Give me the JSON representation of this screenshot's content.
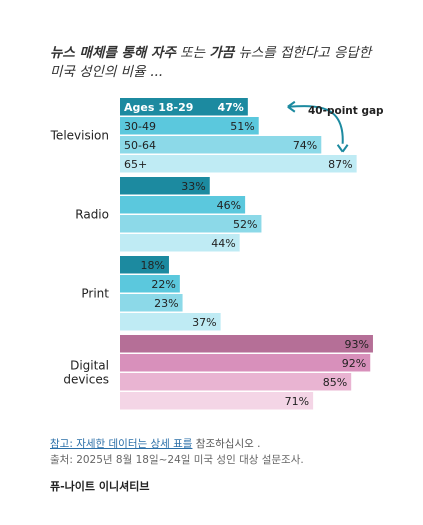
{
  "title": {
    "part1": "뉴스 매체를 통해 자주",
    "part2": " 또는 ",
    "part3": "가끔",
    "part4": " 뉴스를 접한다고 응답한",
    "line2": "미국 성인의 비율 ..."
  },
  "chart_data": {
    "type": "bar",
    "orientation": "horizontal",
    "categories": [
      "Television",
      "Radio",
      "Print",
      "Digital\ndevices"
    ],
    "series": [
      {
        "name": "Ages 18-29",
        "values": [
          47,
          33,
          18,
          93
        ]
      },
      {
        "name": "30-49",
        "values": [
          51,
          46,
          22,
          92
        ]
      },
      {
        "name": "50-64",
        "values": [
          74,
          52,
          23,
          85
        ]
      },
      {
        "name": "65+",
        "values": [
          87,
          44,
          37,
          71
        ]
      }
    ],
    "annotation": "40-point gap",
    "colors": {
      "default": [
        "#1c8aa0",
        "#5bc8dd",
        "#8cd9e8",
        "#bfebf4"
      ],
      "digital": [
        "#b56f97",
        "#d890bb",
        "#e9b4d2",
        "#f4d5e6"
      ]
    },
    "xlim": [
      0,
      100
    ]
  },
  "footer": {
    "note_link": "참고: 자세한 데이터는 상세 표를",
    "note_rest": " 참조하십시오 .",
    "source": "출처: 2025년 8월 18일~24일 미국 성인 대상 설문조사.",
    "brand": "퓨-나이트 이니셔티브"
  }
}
